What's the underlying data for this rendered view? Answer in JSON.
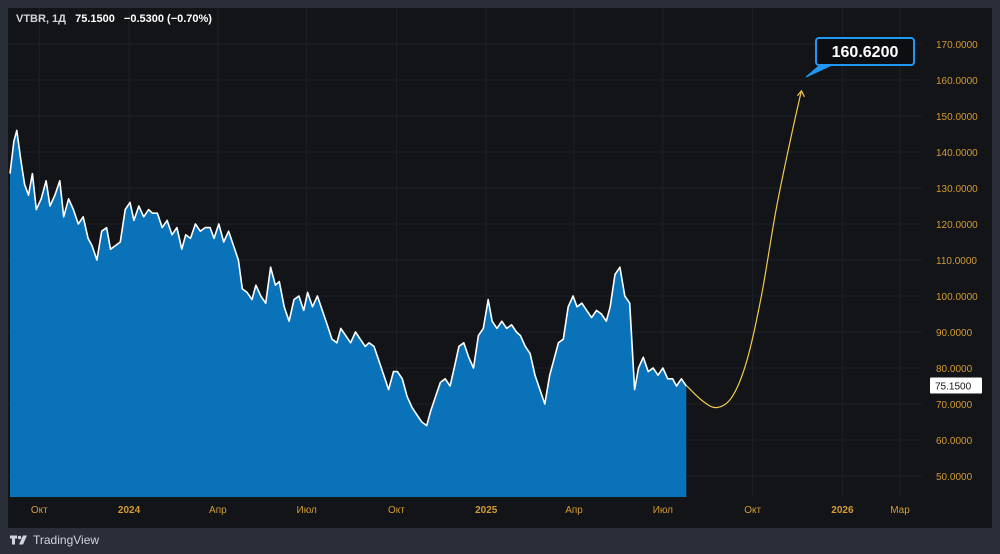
{
  "header": {
    "symbol": "VTBR, 1Д",
    "price": "75.1500",
    "change": "−0.5300 (−0.70%)"
  },
  "brand": {
    "name": "TradingView"
  },
  "colors": {
    "area_fill": "#0a72b9",
    "area_line": "#ffffff",
    "forecast": "#f2c94c",
    "callout_border": "#2196f3",
    "callout_bg": "#0d0e12",
    "axis_text": "#d29b34",
    "label_bg": "#ffffff"
  },
  "chart_data": {
    "type": "area",
    "title": "",
    "ylim": [
      44,
      176
    ],
    "y_ticks": [
      "170.0000",
      "160.0000",
      "150.0000",
      "140.0000",
      "130.0000",
      "120.0000",
      "110.0000",
      "100.0000",
      "90.0000",
      "80.0000",
      "70.0000",
      "60.0000",
      "50.0000"
    ],
    "x_ticks": [
      {
        "label": "Окт",
        "date": "2023-10-01",
        "bold": false
      },
      {
        "label": "2024",
        "date": "2024-01-01",
        "bold": true
      },
      {
        "label": "Апр",
        "date": "2024-04-01",
        "bold": false
      },
      {
        "label": "Июл",
        "date": "2024-07-01",
        "bold": false
      },
      {
        "label": "Окт",
        "date": "2024-10-01",
        "bold": false
      },
      {
        "label": "2025",
        "date": "2025-01-01",
        "bold": true
      },
      {
        "label": "Апр",
        "date": "2025-04-01",
        "bold": false
      },
      {
        "label": "Июл",
        "date": "2025-07-01",
        "bold": false
      },
      {
        "label": "Окт",
        "date": "2025-10-01",
        "bold": false
      },
      {
        "label": "2026",
        "date": "2026-01-01",
        "bold": true
      },
      {
        "label": "Мар",
        "date": "2026-03-01",
        "bold": false
      }
    ],
    "series": [
      {
        "points": [
          [
            "2023-09-01",
            134
          ],
          [
            "2023-09-05",
            143
          ],
          [
            "2023-09-08",
            146
          ],
          [
            "2023-09-12",
            138
          ],
          [
            "2023-09-16",
            131
          ],
          [
            "2023-09-20",
            128
          ],
          [
            "2023-09-24",
            134
          ],
          [
            "2023-09-28",
            124
          ],
          [
            "2023-10-03",
            127
          ],
          [
            "2023-10-08",
            132
          ],
          [
            "2023-10-12",
            125
          ],
          [
            "2023-10-17",
            128
          ],
          [
            "2023-10-22",
            132
          ],
          [
            "2023-10-26",
            122
          ],
          [
            "2023-10-31",
            127
          ],
          [
            "2023-11-05",
            124
          ],
          [
            "2023-11-10",
            120
          ],
          [
            "2023-11-15",
            122
          ],
          [
            "2023-11-20",
            116
          ],
          [
            "2023-11-24",
            114
          ],
          [
            "2023-11-29",
            110
          ],
          [
            "2023-12-04",
            118
          ],
          [
            "2023-12-09",
            119
          ],
          [
            "2023-12-13",
            113
          ],
          [
            "2023-12-18",
            114
          ],
          [
            "2023-12-23",
            115
          ],
          [
            "2023-12-28",
            124
          ],
          [
            "2024-01-02",
            126
          ],
          [
            "2024-01-06",
            121
          ],
          [
            "2024-01-11",
            125
          ],
          [
            "2024-01-16",
            122
          ],
          [
            "2024-01-21",
            124
          ],
          [
            "2024-01-25",
            123
          ],
          [
            "2024-01-30",
            123
          ],
          [
            "2024-02-04",
            119
          ],
          [
            "2024-02-09",
            121
          ],
          [
            "2024-02-14",
            117
          ],
          [
            "2024-02-19",
            119
          ],
          [
            "2024-02-24",
            113
          ],
          [
            "2024-02-28",
            117
          ],
          [
            "2024-03-04",
            116
          ],
          [
            "2024-03-09",
            120
          ],
          [
            "2024-03-14",
            118
          ],
          [
            "2024-03-19",
            119
          ],
          [
            "2024-03-24",
            119
          ],
          [
            "2024-03-28",
            116
          ],
          [
            "2024-04-02",
            120
          ],
          [
            "2024-04-07",
            115
          ],
          [
            "2024-04-12",
            118
          ],
          [
            "2024-04-17",
            114
          ],
          [
            "2024-04-22",
            110
          ],
          [
            "2024-04-26",
            102
          ],
          [
            "2024-05-01",
            101
          ],
          [
            "2024-05-06",
            99
          ],
          [
            "2024-05-10",
            103
          ],
          [
            "2024-05-15",
            100
          ],
          [
            "2024-05-20",
            98
          ],
          [
            "2024-05-25",
            108
          ],
          [
            "2024-05-30",
            103
          ],
          [
            "2024-06-03",
            104
          ],
          [
            "2024-06-08",
            97
          ],
          [
            "2024-06-13",
            93
          ],
          [
            "2024-06-18",
            99
          ],
          [
            "2024-06-23",
            100
          ],
          [
            "2024-06-28",
            96
          ],
          [
            "2024-07-02",
            101
          ],
          [
            "2024-07-07",
            97
          ],
          [
            "2024-07-12",
            100
          ],
          [
            "2024-07-17",
            96
          ],
          [
            "2024-07-22",
            92
          ],
          [
            "2024-07-27",
            88
          ],
          [
            "2024-08-01",
            87
          ],
          [
            "2024-08-05",
            91
          ],
          [
            "2024-08-10",
            89
          ],
          [
            "2024-08-15",
            87
          ],
          [
            "2024-08-20",
            90
          ],
          [
            "2024-08-25",
            88
          ],
          [
            "2024-08-30",
            86
          ],
          [
            "2024-09-03",
            87
          ],
          [
            "2024-09-08",
            86
          ],
          [
            "2024-09-13",
            82
          ],
          [
            "2024-09-18",
            78
          ],
          [
            "2024-09-23",
            74
          ],
          [
            "2024-09-28",
            79
          ],
          [
            "2024-10-02",
            79
          ],
          [
            "2024-10-07",
            77
          ],
          [
            "2024-10-12",
            72
          ],
          [
            "2024-10-17",
            69
          ],
          [
            "2024-10-22",
            67
          ],
          [
            "2024-10-27",
            65
          ],
          [
            "2024-11-01",
            64
          ],
          [
            "2024-11-05",
            68
          ],
          [
            "2024-11-10",
            72
          ],
          [
            "2024-11-15",
            76
          ],
          [
            "2024-11-20",
            77
          ],
          [
            "2024-11-25",
            75
          ],
          [
            "2024-11-30",
            81
          ],
          [
            "2024-12-04",
            86
          ],
          [
            "2024-12-09",
            87
          ],
          [
            "2024-12-14",
            83
          ],
          [
            "2024-12-19",
            80
          ],
          [
            "2024-12-24",
            89
          ],
          [
            "2024-12-29",
            91
          ],
          [
            "2025-01-03",
            99
          ],
          [
            "2025-01-07",
            93
          ],
          [
            "2025-01-12",
            91
          ],
          [
            "2025-01-17",
            93
          ],
          [
            "2025-01-22",
            91
          ],
          [
            "2025-01-27",
            92
          ],
          [
            "2025-02-01",
            90
          ],
          [
            "2025-02-05",
            89
          ],
          [
            "2025-02-10",
            86
          ],
          [
            "2025-02-15",
            84
          ],
          [
            "2025-02-20",
            78
          ],
          [
            "2025-02-25",
            74
          ],
          [
            "2025-03-02",
            70
          ],
          [
            "2025-03-07",
            78
          ],
          [
            "2025-03-11",
            82
          ],
          [
            "2025-03-16",
            87
          ],
          [
            "2025-03-21",
            88
          ],
          [
            "2025-03-26",
            97
          ],
          [
            "2025-03-31",
            100
          ],
          [
            "2025-04-04",
            97
          ],
          [
            "2025-04-09",
            98
          ],
          [
            "2025-04-14",
            96
          ],
          [
            "2025-04-19",
            94
          ],
          [
            "2025-04-24",
            96
          ],
          [
            "2025-04-29",
            95
          ],
          [
            "2025-05-04",
            93
          ],
          [
            "2025-05-08",
            97
          ],
          [
            "2025-05-13",
            106
          ],
          [
            "2025-05-18",
            108
          ],
          [
            "2025-05-23",
            100
          ],
          [
            "2025-05-28",
            98
          ],
          [
            "2025-06-02",
            74
          ],
          [
            "2025-06-06",
            80
          ],
          [
            "2025-06-11",
            83
          ],
          [
            "2025-06-16",
            79
          ],
          [
            "2025-06-21",
            80
          ],
          [
            "2025-06-26",
            78
          ],
          [
            "2025-07-01",
            80
          ],
          [
            "2025-07-06",
            77
          ],
          [
            "2025-07-11",
            77
          ],
          [
            "2025-07-15",
            75
          ],
          [
            "2025-07-20",
            77
          ],
          [
            "2025-07-25",
            75
          ]
        ]
      }
    ],
    "forecast": {
      "points": [
        [
          "2025-07-25",
          75.15
        ],
        [
          "2025-08-10",
          71
        ],
        [
          "2025-08-25",
          69
        ],
        [
          "2025-09-10",
          72
        ],
        [
          "2025-09-25",
          82
        ],
        [
          "2025-10-10",
          100
        ],
        [
          "2025-10-25",
          124
        ],
        [
          "2025-11-10",
          145
        ],
        [
          "2025-11-20",
          157
        ]
      ],
      "target_label": "160.6200",
      "last_price_label": "75.1500"
    }
  }
}
